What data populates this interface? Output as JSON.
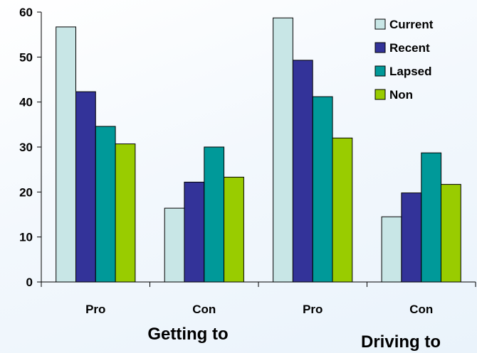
{
  "chart_data": {
    "type": "bar",
    "categories": [
      "Pro",
      "Con",
      "Pro",
      "Con"
    ],
    "groups": [
      "Getting to",
      "Driving to"
    ],
    "series": [
      {
        "name": "Current",
        "color": "#c8e6e6",
        "values": [
          56.7,
          16.4,
          58.7,
          14.5
        ]
      },
      {
        "name": "Recent",
        "color": "#333399",
        "values": [
          42.3,
          22.2,
          49.3,
          19.8
        ]
      },
      {
        "name": "Lapsed",
        "color": "#009999",
        "values": [
          34.6,
          30.0,
          41.2,
          28.7
        ]
      },
      {
        "name": "Non",
        "color": "#99cc00",
        "values": [
          30.7,
          23.3,
          32.0,
          21.7
        ]
      }
    ],
    "yticks": [
      0,
      10,
      20,
      30,
      40,
      50,
      60
    ],
    "ylim": [
      0,
      60
    ],
    "legend_position": "top-right",
    "grid": false
  }
}
